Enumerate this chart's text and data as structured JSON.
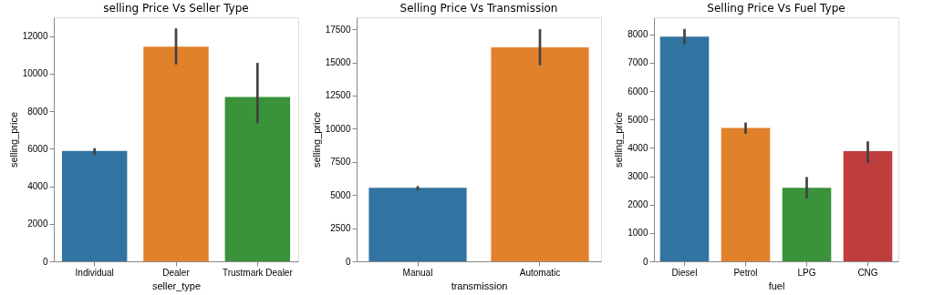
{
  "chart_data": [
    {
      "type": "bar",
      "title": "selling Price Vs Seller Type",
      "xlabel": "seller_type",
      "ylabel": "selling_price",
      "categories": [
        "Individual",
        "Dealer",
        "Trustmark Dealer"
      ],
      "values": [
        5880,
        11430,
        8750
      ],
      "colors": [
        "#3274a1",
        "#e1812c",
        "#3a923a"
      ],
      "errors": [
        [
          5650,
          6030
        ],
        [
          10490,
          12410
        ],
        [
          7360,
          10570
        ]
      ],
      "ylim": [
        0,
        13000
      ],
      "yticks": [
        0,
        2000,
        4000,
        6000,
        8000,
        10000,
        12000
      ],
      "grid": false
    },
    {
      "type": "bar",
      "title": "Selling Price Vs Transmission",
      "xlabel": "transmission",
      "ylabel": "selling_price",
      "categories": [
        "Manual",
        "Automatic"
      ],
      "values": [
        5540,
        16130
      ],
      "colors": [
        "#3274a1",
        "#e1812c"
      ],
      "errors": [
        [
          5330,
          5670
        ],
        [
          14780,
          17500
        ]
      ],
      "ylim": [
        0,
        18400
      ],
      "yticks": [
        0,
        2500,
        5000,
        7500,
        10000,
        12500,
        15000,
        17500
      ],
      "grid": false
    },
    {
      "type": "bar",
      "title": "Selling Price Vs Fuel Type",
      "xlabel": "fuel",
      "ylabel": "selling_price",
      "categories": [
        "Diesel",
        "Petrol",
        "LPG",
        "CNG"
      ],
      "values": [
        7920,
        4700,
        2590,
        3880
      ],
      "colors": [
        "#3274a1",
        "#e1812c",
        "#3a923a",
        "#c03d3e"
      ],
      "errors": [
        [
          7640,
          8190
        ],
        [
          4490,
          4890
        ],
        [
          2220,
          2970
        ],
        [
          3460,
          4230
        ]
      ],
      "ylim": [
        0,
        8600
      ],
      "yticks": [
        0,
        1000,
        2000,
        3000,
        4000,
        5000,
        6000,
        7000,
        8000
      ],
      "grid": false
    }
  ]
}
